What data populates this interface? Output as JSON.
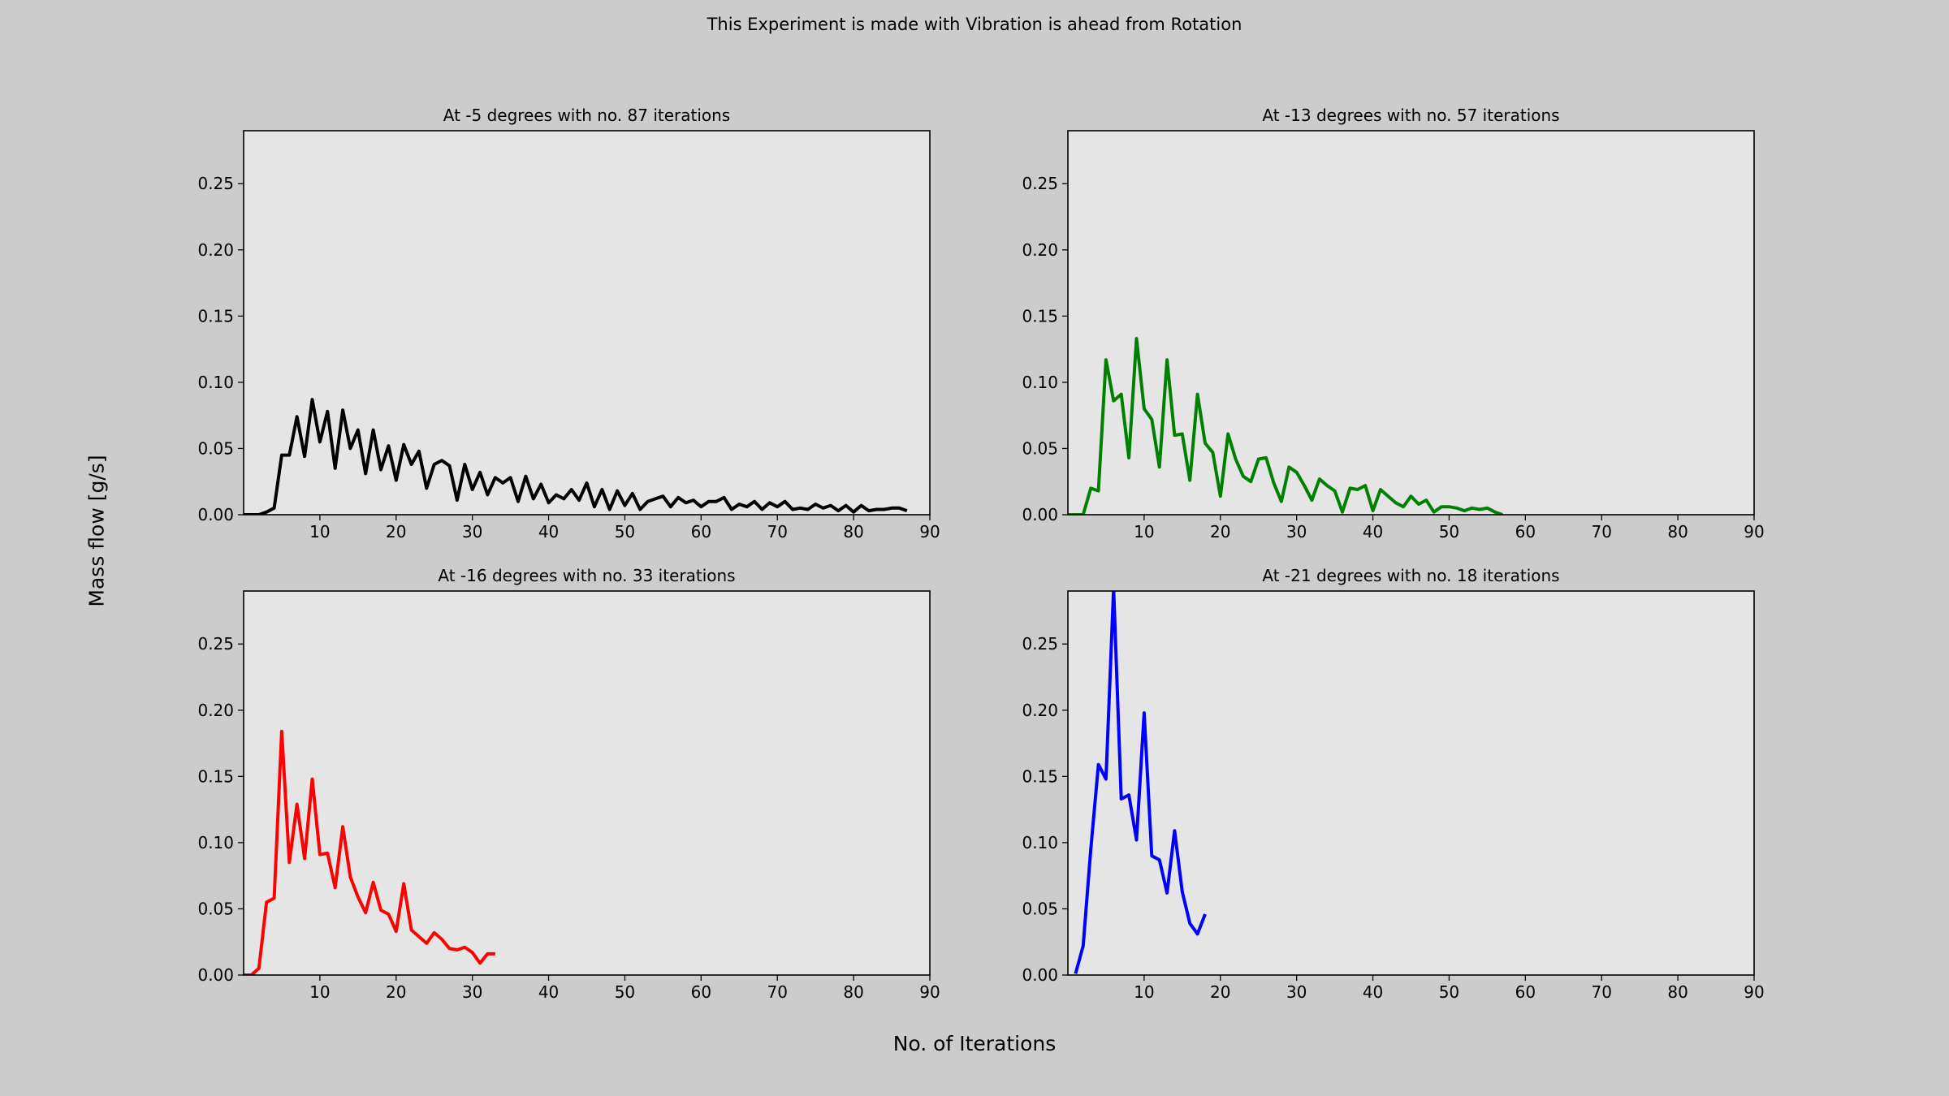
{
  "figure": {
    "suptitle": "This Experiment is made with Vibration is ahead from Rotation",
    "xlabel": "No. of Iterations",
    "ylabel": "Mass flow [g/s]"
  },
  "chart_data": [
    {
      "type": "line",
      "title": "At -5 degrees with no. 87 iterations",
      "xlim": [
        0,
        90
      ],
      "ylim": [
        0,
        0.29
      ],
      "xticks": [
        10,
        20,
        30,
        40,
        50,
        60,
        70,
        80,
        90
      ],
      "yticks": [
        0.0,
        0.05,
        0.1,
        0.15,
        0.2,
        0.25
      ],
      "color": "#000000",
      "x": [
        0,
        1,
        2,
        3,
        4,
        5,
        6,
        7,
        8,
        9,
        10,
        11,
        12,
        13,
        14,
        15,
        16,
        17,
        18,
        19,
        20,
        21,
        22,
        23,
        24,
        25,
        26,
        27,
        28,
        29,
        30,
        31,
        32,
        33,
        34,
        35,
        36,
        37,
        38,
        39,
        40,
        41,
        42,
        43,
        44,
        45,
        46,
        47,
        48,
        49,
        50,
        51,
        52,
        53,
        54,
        55,
        56,
        57,
        58,
        59,
        60,
        61,
        62,
        63,
        64,
        65,
        66,
        67,
        68,
        69,
        70,
        71,
        72,
        73,
        74,
        75,
        76,
        77,
        78,
        79,
        80,
        81,
        82,
        83,
        84,
        85,
        86,
        87
      ],
      "y": [
        0,
        0,
        0,
        0.002,
        0.005,
        0.045,
        0.045,
        0.074,
        0.044,
        0.087,
        0.055,
        0.078,
        0.035,
        0.079,
        0.05,
        0.064,
        0.031,
        0.064,
        0.034,
        0.052,
        0.026,
        0.053,
        0.038,
        0.048,
        0.02,
        0.038,
        0.041,
        0.037,
        0.011,
        0.038,
        0.019,
        0.032,
        0.015,
        0.028,
        0.024,
        0.028,
        0.01,
        0.029,
        0.012,
        0.023,
        0.009,
        0.015,
        0.012,
        0.019,
        0.011,
        0.024,
        0.006,
        0.019,
        0.004,
        0.018,
        0.007,
        0.016,
        0.004,
        0.01,
        0.012,
        0.014,
        0.006,
        0.013,
        0.009,
        0.011,
        0.006,
        0.01,
        0.01,
        0.013,
        0.004,
        0.008,
        0.006,
        0.01,
        0.004,
        0.009,
        0.006,
        0.01,
        0.004,
        0.005,
        0.004,
        0.008,
        0.005,
        0.007,
        0.003,
        0.007,
        0.002,
        0.007,
        0.003,
        0.004,
        0.004,
        0.005,
        0.005,
        0.003
      ]
    },
    {
      "type": "line",
      "title": "At -13 degrees with no. 57 iterations",
      "xlim": [
        0,
        90
      ],
      "ylim": [
        0,
        0.29
      ],
      "xticks": [
        10,
        20,
        30,
        40,
        50,
        60,
        70,
        80,
        90
      ],
      "yticks": [
        0.0,
        0.05,
        0.1,
        0.15,
        0.2,
        0.25
      ],
      "color": "#008000",
      "x": [
        0,
        1,
        2,
        3,
        4,
        5,
        6,
        7,
        8,
        9,
        10,
        11,
        12,
        13,
        14,
        15,
        16,
        17,
        18,
        19,
        20,
        21,
        22,
        23,
        24,
        25,
        26,
        27,
        28,
        29,
        30,
        31,
        32,
        33,
        34,
        35,
        36,
        37,
        38,
        39,
        40,
        41,
        42,
        43,
        44,
        45,
        46,
        47,
        48,
        49,
        50,
        51,
        52,
        53,
        54,
        55,
        56,
        57
      ],
      "y": [
        0,
        0,
        0,
        0.02,
        0.018,
        0.117,
        0.086,
        0.091,
        0.043,
        0.133,
        0.08,
        0.072,
        0.036,
        0.117,
        0.06,
        0.061,
        0.026,
        0.091,
        0.054,
        0.047,
        0.014,
        0.061,
        0.042,
        0.029,
        0.025,
        0.042,
        0.043,
        0.024,
        0.01,
        0.036,
        0.032,
        0.022,
        0.011,
        0.027,
        0.022,
        0.018,
        0.002,
        0.02,
        0.019,
        0.022,
        0.003,
        0.019,
        0.014,
        0.009,
        0.006,
        0.014,
        0.008,
        0.011,
        0.002,
        0.006,
        0.006,
        0.005,
        0.003,
        0.005,
        0.004,
        0.005,
        0.002,
        0.0
      ]
    },
    {
      "type": "line",
      "title": "At -16 degrees with no. 33 iterations",
      "xlim": [
        0,
        90
      ],
      "ylim": [
        0,
        0.29
      ],
      "xticks": [
        10,
        20,
        30,
        40,
        50,
        60,
        70,
        80,
        90
      ],
      "yticks": [
        0.0,
        0.05,
        0.1,
        0.15,
        0.2,
        0.25
      ],
      "color": "#ff0000",
      "x": [
        0,
        1,
        2,
        3,
        4,
        5,
        6,
        7,
        8,
        9,
        10,
        11,
        12,
        13,
        14,
        15,
        16,
        17,
        18,
        19,
        20,
        21,
        22,
        23,
        24,
        25,
        26,
        27,
        28,
        29,
        30,
        31,
        32,
        33
      ],
      "y": [
        0,
        0,
        0.005,
        0.055,
        0.058,
        0.184,
        0.085,
        0.129,
        0.088,
        0.148,
        0.091,
        0.092,
        0.066,
        0.112,
        0.074,
        0.059,
        0.047,
        0.07,
        0.049,
        0.046,
        0.033,
        0.069,
        0.034,
        0.029,
        0.024,
        0.032,
        0.027,
        0.02,
        0.019,
        0.021,
        0.017,
        0.009,
        0.016,
        0.016
      ]
    },
    {
      "type": "line",
      "title": "At -21 degrees with no. 18 iterations",
      "xlim": [
        0,
        90
      ],
      "ylim": [
        0,
        0.29
      ],
      "xticks": [
        10,
        20,
        30,
        40,
        50,
        60,
        70,
        80,
        90
      ],
      "yticks": [
        0.0,
        0.05,
        0.1,
        0.15,
        0.2,
        0.25
      ],
      "color": "#0000ff",
      "x": [
        1,
        2,
        3,
        4,
        5,
        6,
        7,
        8,
        9,
        10,
        11,
        12,
        13,
        14,
        15,
        16,
        17,
        18
      ],
      "y": [
        0.001,
        0.022,
        0.095,
        0.159,
        0.148,
        0.292,
        0.133,
        0.136,
        0.102,
        0.198,
        0.09,
        0.087,
        0.062,
        0.109,
        0.063,
        0.039,
        0.031,
        0.046
      ]
    }
  ]
}
